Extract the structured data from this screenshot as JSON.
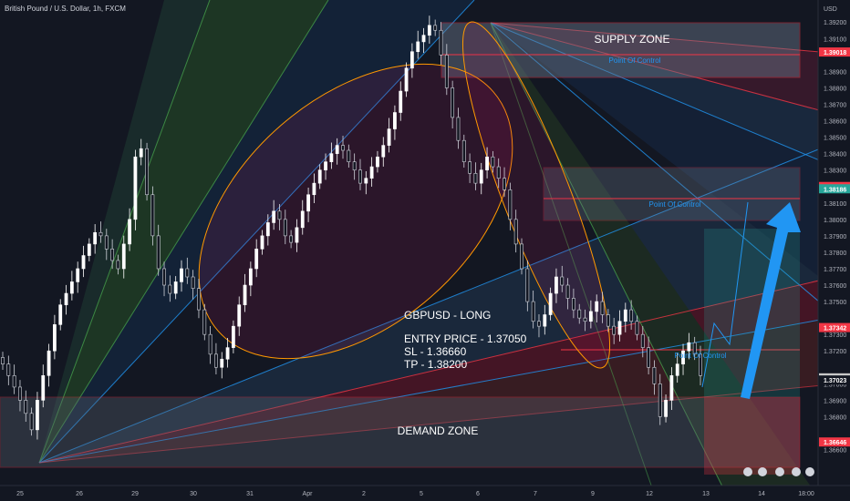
{
  "header": {
    "symbol_title": "British Pound / U.S. Dollar, 1h, FXCM"
  },
  "axis": {
    "currency": "USD"
  },
  "chart_data": {
    "type": "candlestick",
    "title": "British Pound / U.S. Dollar, 1h, FXCM",
    "ylim": [
      1.3642,
      1.3929
    ],
    "y_ticks": [
      1.366,
      1.368,
      1.369,
      1.37,
      1.372,
      1.373,
      1.375,
      1.376,
      1.377,
      1.378,
      1.379,
      1.38,
      1.381,
      1.383,
      1.384,
      1.385,
      1.386,
      1.387,
      1.388,
      1.389,
      1.391,
      1.392
    ],
    "y_tick_labels": [
      "1.36600",
      "1.36800",
      "1.36900",
      "1.37000",
      "1.37200",
      "1.37300",
      "1.37500",
      "1.37600",
      "1.37700",
      "1.37800",
      "1.37900",
      "1.38000",
      "1.38100",
      "1.38300",
      "1.38400",
      "1.38500",
      "1.38600",
      "1.38700",
      "1.38800",
      "1.38900",
      "1.39100",
      "1.39200"
    ],
    "x_tick_labels": [
      "25",
      "26",
      "29",
      "30",
      "31",
      "Apr",
      "2",
      "5",
      "6",
      "7",
      "9",
      "12",
      "13",
      "14",
      "18:00"
    ],
    "price_markers": [
      {
        "value": 1.39018,
        "label": "1.39018",
        "color": "#f23645"
      },
      {
        "value": 1.382,
        "label": "1.38200",
        "color": "#f23645"
      },
      {
        "value": 1.38186,
        "label": "1.38186",
        "color": "#26a69a"
      },
      {
        "value": 1.37342,
        "label": "1.37342",
        "color": "#f23645"
      },
      {
        "value": 1.37036,
        "label": "1.37036",
        "color": "#c8c8c8"
      },
      {
        "value": 1.37023,
        "label": "1.37023",
        "color": "#131722"
      },
      {
        "value": 1.36646,
        "label": "1.36646",
        "color": "#f23645"
      }
    ],
    "zones": [
      {
        "name": "SUPPLY ZONE",
        "top": 1.392,
        "bottom": 1.3888,
        "poc_label": "Point Of Control",
        "poc": 1.3901
      },
      {
        "name": "",
        "top": 1.3838,
        "bottom": 1.3808,
        "poc_label": "Point Of Control",
        "poc": 1.382
      },
      {
        "name": "DEMAND ZONE",
        "top": 1.3705,
        "bottom": 1.3664,
        "poc_label": "",
        "poc": null
      },
      {
        "name": "",
        "top": 1.3734,
        "bottom": 1.3734,
        "poc_label": "Point Of Control",
        "poc": 1.3734
      }
    ],
    "annotations": [
      "GBPUSD - LONG",
      "ENTRY PRICE - 1.37050",
      "SL - 1.36660",
      "TP - 1.38200"
    ],
    "close_series": [
      1.3712,
      1.3705,
      1.3698,
      1.369,
      1.3682,
      1.3672,
      1.369,
      1.3705,
      1.372,
      1.3736,
      1.3748,
      1.3755,
      1.3762,
      1.377,
      1.3778,
      1.3785,
      1.3792,
      1.379,
      1.3782,
      1.3775,
      1.377,
      1.3785,
      1.38,
      1.3838,
      1.3843,
      1.3815,
      1.379,
      1.377,
      1.376,
      1.3755,
      1.3762,
      1.377,
      1.3765,
      1.3758,
      1.3745,
      1.373,
      1.3718,
      1.371,
      1.3715,
      1.3722,
      1.3735,
      1.3748,
      1.376,
      1.377,
      1.3782,
      1.379,
      1.3798,
      1.3805,
      1.38,
      1.379,
      1.3786,
      1.3795,
      1.3805,
      1.3815,
      1.3822,
      1.383,
      1.3835,
      1.384,
      1.3845,
      1.3842,
      1.3835,
      1.383,
      1.3822,
      1.3825,
      1.3832,
      1.3838,
      1.3845,
      1.3855,
      1.3865,
      1.3878,
      1.3892,
      1.3902,
      1.3908,
      1.3912,
      1.3918,
      1.3915,
      1.39,
      1.388,
      1.3862,
      1.3848,
      1.3835,
      1.3828,
      1.3822,
      1.383,
      1.3838,
      1.3832,
      1.3825,
      1.3818,
      1.38,
      1.3785,
      1.377,
      1.375,
      1.3738,
      1.3735,
      1.3742,
      1.3755,
      1.3765,
      1.376,
      1.3752,
      1.3745,
      1.374,
      1.3738,
      1.3744,
      1.375,
      1.3742,
      1.3735,
      1.373,
      1.3738,
      1.3745,
      1.3738,
      1.373,
      1.3722,
      1.371,
      1.37,
      1.368,
      1.369,
      1.3705,
      1.3712,
      1.372,
      1.3725,
      1.3718,
      1.3705
    ]
  }
}
